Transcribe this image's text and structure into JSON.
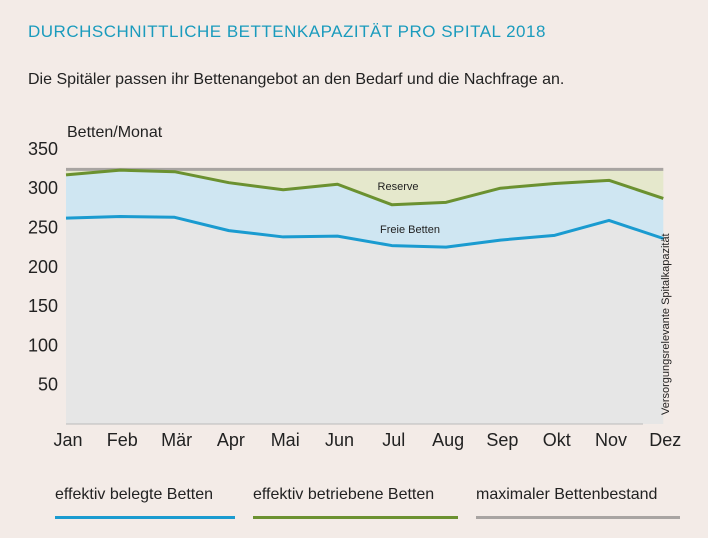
{
  "title": "DURCHSCHNITTLICHE BETTENKAPAZITÄT PRO SPITAL 2018",
  "subtitle": "Die Spitäler passen ihr Bettenangebot an den Bedarf und die Nachfrage an.",
  "chart_data": {
    "type": "area",
    "ylabel": "Betten/Monat",
    "side_label": "Versorgungsrelevante Spitalkapazität",
    "categories": [
      "Jan",
      "Feb",
      "Mär",
      "Apr",
      "Mai",
      "Jun",
      "Jul",
      "Aug",
      "Sep",
      "Okt",
      "Nov",
      "Dez"
    ],
    "y_ticks": [
      50,
      100,
      150,
      200,
      250,
      300,
      350
    ],
    "ylim": [
      0,
      350
    ],
    "grid": false,
    "series": [
      {
        "name": "effektiv belegte Betten",
        "color": "#1a9bd0",
        "values": [
          262,
          264,
          263,
          246,
          238,
          239,
          227,
          225,
          234,
          240,
          259,
          236
        ]
      },
      {
        "name": "effektiv betriebene Betten",
        "color": "#6b9130",
        "values": [
          317,
          323,
          321,
          307,
          298,
          305,
          279,
          282,
          300,
          306,
          310,
          287
        ]
      },
      {
        "name": "maximaler Bettenbestand",
        "color": "#a8a4a2",
        "values": [
          324,
          324,
          324,
          324,
          324,
          324,
          324,
          324,
          324,
          324,
          324,
          324
        ]
      }
    ],
    "annotations": [
      "Reserve",
      "Freie Betten"
    ],
    "fill_colors": {
      "reserve": "#e5e8cc",
      "free": "#cfe6f2",
      "occupied": "#e6e6e6"
    }
  },
  "legend": [
    "effektiv belegte Betten",
    "effektiv betriebene Betten",
    "maximaler Bettenbestand"
  ]
}
